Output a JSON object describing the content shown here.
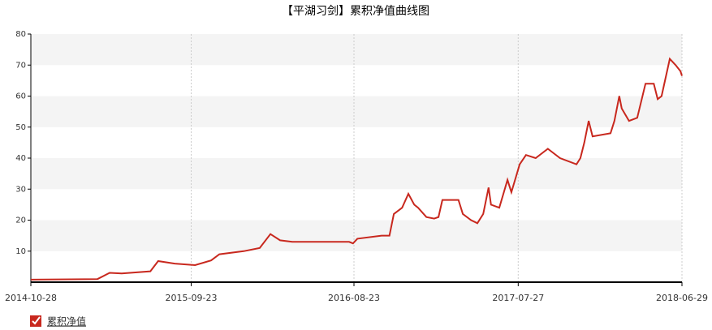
{
  "chart_data": {
    "type": "line",
    "title": "【平湖习剑】累积净值曲线图",
    "x": [
      "2014-10-28",
      "2015-03-14",
      "2015-04-08",
      "2015-05-03",
      "2015-07-01",
      "2015-07-17",
      "2015-08-20",
      "2015-10-01",
      "2015-11-03",
      "2015-11-20",
      "2016-01-09",
      "2016-02-11",
      "2016-03-04",
      "2016-03-24",
      "2016-04-18",
      "2016-08-13",
      "2016-08-21",
      "2016-08-30",
      "2016-10-19",
      "2016-11-04",
      "2016-11-13",
      "2016-11-30",
      "2016-12-13",
      "2016-12-25",
      "2017-01-02",
      "2017-01-19",
      "2017-02-04",
      "2017-02-13",
      "2017-02-21",
      "2017-03-26",
      "2017-04-04",
      "2017-04-21",
      "2017-05-04",
      "2017-05-16",
      "2017-05-27",
      "2017-06-01",
      "2017-06-18",
      "2017-07-05",
      "2017-07-13",
      "2017-07-30",
      "2017-08-12",
      "2017-09-01",
      "2017-09-26",
      "2017-10-21",
      "2017-11-24",
      "2017-12-02",
      "2017-12-10",
      "2017-12-19",
      "2017-12-27",
      "2018-02-02",
      "2018-02-10",
      "2018-02-20",
      "2018-02-25",
      "2018-03-12",
      "2018-03-29",
      "2018-04-15",
      "2018-05-02",
      "2018-05-10",
      "2018-05-18",
      "2018-06-04",
      "2018-06-16",
      "2018-06-26",
      "2018-06-29"
    ],
    "series": [
      {
        "name": "累积净值",
        "color": "#c8281e",
        "values": [
          0.8,
          1.0,
          3.0,
          2.8,
          3.5,
          6.8,
          6.0,
          5.5,
          7.0,
          9.0,
          10.0,
          11.0,
          15.5,
          13.5,
          13.0,
          13.0,
          12.5,
          14.0,
          15.0,
          15.0,
          22.0,
          24.0,
          28.5,
          25.0,
          24.0,
          21.0,
          20.5,
          21.0,
          26.5,
          26.5,
          22.0,
          20.0,
          19.0,
          22.0,
          30.5,
          25.0,
          24.0,
          33.0,
          29.0,
          38.0,
          41.0,
          40.0,
          43.0,
          40.0,
          38.0,
          40.0,
          45.0,
          52.0,
          47.0,
          48.0,
          52.0,
          60.0,
          56.0,
          52.0,
          53.0,
          64.0,
          64.0,
          59.0,
          60.0,
          72.0,
          70.0,
          68.0,
          66.5
        ]
      }
    ],
    "xlim": [
      "2014-10-28",
      "2018-06-29"
    ],
    "xticks": [
      "2014-10-28",
      "2015-09-23",
      "2016-08-23",
      "2017-07-27",
      "2018-06-29"
    ],
    "ylim": [
      0,
      80
    ],
    "yticks": [
      10,
      20,
      30,
      40,
      50,
      60,
      70,
      80
    ],
    "grid": true
  }
}
